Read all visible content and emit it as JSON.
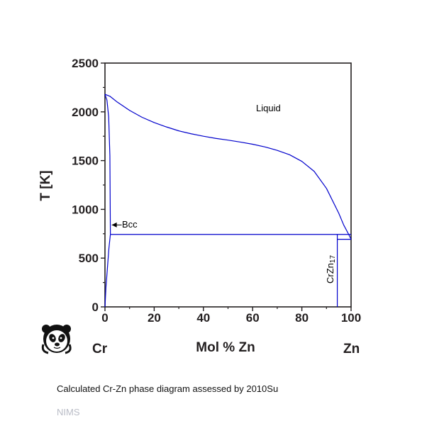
{
  "chart_data": {
    "type": "line",
    "title": "",
    "xlabel": "Mol % Zn",
    "ylabel": "T [K]",
    "xlim": [
      0,
      100
    ],
    "ylim": [
      0,
      2500
    ],
    "x_ticks": [
      0,
      20,
      40,
      60,
      80,
      100
    ],
    "y_ticks": [
      0,
      500,
      1000,
      1500,
      2000,
      2500
    ],
    "left_element": "Cr",
    "right_element": "Zn",
    "line_color": "#0000cc",
    "regions": {
      "liquid": "Liquid",
      "bcc": "Bcc",
      "compound_main": "CrZn",
      "compound_sub": "17"
    },
    "series": [
      {
        "points": [
          [
            0,
            2180
          ],
          [
            2,
            2160
          ],
          [
            5,
            2100
          ],
          [
            10,
            2015
          ],
          [
            15,
            1945
          ],
          [
            20,
            1890
          ],
          [
            25,
            1845
          ],
          [
            30,
            1805
          ],
          [
            35,
            1775
          ],
          [
            40,
            1750
          ],
          [
            45,
            1728
          ],
          [
            50,
            1710
          ],
          [
            55,
            1690
          ],
          [
            60,
            1668
          ],
          [
            65,
            1640
          ],
          [
            70,
            1605
          ],
          [
            75,
            1560
          ],
          [
            80,
            1492
          ],
          [
            85,
            1390
          ],
          [
            90,
            1215
          ],
          [
            95,
            960
          ],
          [
            97,
            840
          ],
          [
            99,
            745
          ],
          [
            100,
            693
          ]
        ]
      },
      {
        "points": [
          [
            2.2,
            743
          ],
          [
            2.0,
            1550
          ],
          [
            1.5,
            1950
          ],
          [
            0.8,
            2120
          ],
          [
            0,
            2180
          ]
        ]
      },
      {
        "points": [
          [
            0,
            0
          ],
          [
            0.4,
            200
          ],
          [
            1.0,
            400
          ],
          [
            1.6,
            600
          ],
          [
            2.2,
            743
          ]
        ]
      },
      {
        "points": [
          [
            2.2,
            743
          ],
          [
            100,
            743
          ]
        ]
      },
      {
        "points": [
          [
            94.4,
            693
          ],
          [
            100,
            693
          ]
        ]
      },
      {
        "points": [
          [
            94.4,
            0
          ],
          [
            94.4,
            743
          ]
        ]
      }
    ],
    "annotation": {
      "text": "Bcc",
      "arrow_from": [
        6.8,
        840
      ],
      "arrow_to": [
        2.2,
        840
      ]
    }
  },
  "caption": "Calculated Cr-Zn phase diagram assessed by 2010Su",
  "credit": "NIMS",
  "logo_icon": "panda-icon"
}
